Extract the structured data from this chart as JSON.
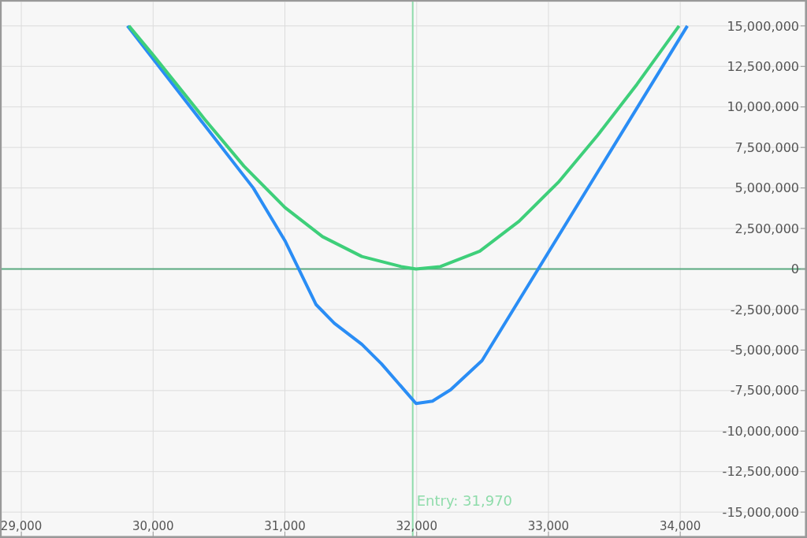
{
  "chart_data": {
    "type": "line",
    "xlim": [
      28850,
      34950
    ],
    "xticks": [
      {
        "value": 29000,
        "label": "29,000"
      },
      {
        "value": 30000,
        "label": "30,000"
      },
      {
        "value": 31000,
        "label": "31,000"
      },
      {
        "value": 32000,
        "label": "32,000"
      },
      {
        "value": 33000,
        "label": "33,000"
      },
      {
        "value": 34000,
        "label": "34,000"
      }
    ],
    "ylim": [
      -16500000,
      16500000
    ],
    "yticks": [
      {
        "value": -15000000,
        "label": "-15,000,000"
      },
      {
        "value": -12500000,
        "label": "-12,500,000"
      },
      {
        "value": -10000000,
        "label": "-10,000,000"
      },
      {
        "value": -7500000,
        "label": "-7,500,000"
      },
      {
        "value": -5000000,
        "label": "-5,000,000"
      },
      {
        "value": -2500000,
        "label": "-2,500,000"
      },
      0,
      {
        "value": 2500000,
        "label": "2,500,000"
      },
      {
        "value": 5000000,
        "label": "5,000,000"
      },
      {
        "value": 7500000,
        "label": "7,500,000"
      },
      {
        "value": 10000000,
        "label": "10,000,000"
      },
      {
        "value": 12500000,
        "label": "12,500,000"
      },
      {
        "value": 15000000,
        "label": "15,000,000"
      }
    ],
    "grid": true,
    "legend": false,
    "marker": "none",
    "line_style": "solid",
    "series": [
      {
        "color": "#2a8df5",
        "x": [
          29805,
          30760,
          31000,
          31237,
          31375,
          31584,
          31733,
          31995,
          32120,
          32258,
          32496,
          34054
        ],
        "values": [
          15000000,
          5000000,
          1750000,
          -2200000,
          -3350000,
          -4650000,
          -5850000,
          -8300000,
          -8150000,
          -7450000,
          -5650000,
          15000000
        ]
      },
      {
        "color": "#3ecf7a",
        "x": [
          29816,
          30000,
          30390,
          30689,
          31000,
          31285,
          31584,
          31882,
          31995,
          32180,
          32479,
          32777,
          33075,
          33373,
          33672,
          33991
        ],
        "values": [
          15000000,
          13200000,
          9250000,
          6350000,
          3800000,
          2000000,
          770000,
          150000,
          0,
          150000,
          1100000,
          2950000,
          5350000,
          8250000,
          11400000,
          15000000
        ]
      }
    ],
    "ref_lines": [
      {
        "axis": "x",
        "value": 31970,
        "label": "Entry: 31,970",
        "color": "#8fdcab"
      },
      {
        "axis": "y",
        "value": 0,
        "color": "#5aaa80"
      }
    ]
  }
}
